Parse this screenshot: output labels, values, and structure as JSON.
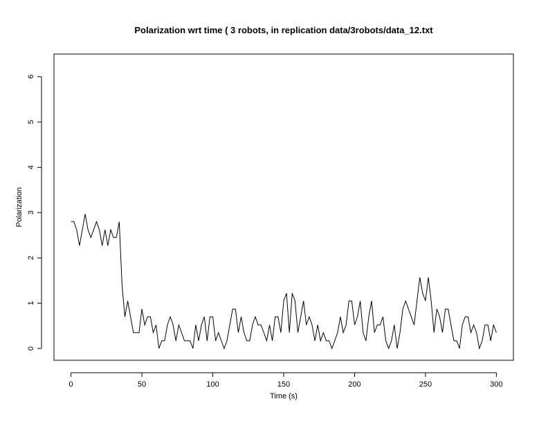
{
  "chart_data": {
    "type": "line",
    "title": "Polarization wrt time ( 3 robots, in replication  data/3robots/data_12.txt",
    "x_label": "Time (s)",
    "y_label": "Polarization",
    "color": "#000000",
    "xlim": [
      -12,
      312
    ],
    "ylim": [
      -0.26,
      6.5
    ],
    "xticks": [
      0,
      50,
      100,
      150,
      200,
      250,
      300
    ],
    "yticks": [
      0,
      1,
      2,
      3,
      4,
      5,
      6
    ],
    "x": [
      0,
      2,
      4,
      6,
      8,
      10,
      12,
      14,
      16,
      18,
      20,
      22,
      24,
      26,
      28,
      30,
      32,
      34,
      36,
      38,
      40,
      42,
      44,
      46,
      48,
      50,
      52,
      54,
      56,
      58,
      60,
      62,
      64,
      66,
      68,
      70,
      72,
      74,
      76,
      78,
      80,
      82,
      84,
      86,
      88,
      90,
      92,
      94,
      96,
      98,
      100,
      102,
      104,
      106,
      108,
      110,
      112,
      114,
      116,
      118,
      120,
      122,
      124,
      126,
      128,
      130,
      132,
      134,
      136,
      138,
      140,
      142,
      144,
      146,
      148,
      150,
      152,
      154,
      156,
      158,
      160,
      162,
      164,
      166,
      168,
      170,
      172,
      174,
      176,
      178,
      180,
      182,
      184,
      186,
      188,
      190,
      192,
      194,
      196,
      198,
      200,
      202,
      204,
      206,
      208,
      210,
      212,
      214,
      216,
      218,
      220,
      222,
      224,
      226,
      228,
      230,
      232,
      234,
      236,
      238,
      240,
      242,
      244,
      246,
      248,
      250,
      252,
      254,
      256,
      258,
      260,
      262,
      264,
      266,
      268,
      270,
      272,
      274,
      276,
      278,
      280,
      282,
      284,
      286,
      288,
      290,
      292,
      294,
      296,
      298,
      300
    ],
    "values": [
      2.8,
      2.8,
      2.62,
      2.27,
      2.62,
      2.97,
      2.62,
      2.45,
      2.62,
      2.8,
      2.62,
      2.27,
      2.62,
      2.27,
      2.62,
      2.45,
      2.45,
      2.8,
      1.4,
      0.7,
      1.05,
      0.7,
      0.35,
      0.35,
      0.35,
      0.87,
      0.52,
      0.7,
      0.7,
      0.35,
      0.52,
      0,
      0.17,
      0.17,
      0.52,
      0.7,
      0.52,
      0.17,
      0.52,
      0.35,
      0.17,
      0.17,
      0.17,
      0,
      0.52,
      0.17,
      0.52,
      0.7,
      0.17,
      0.7,
      0.7,
      0.17,
      0.35,
      0.17,
      0,
      0.17,
      0.52,
      0.87,
      0.87,
      0.35,
      0.7,
      0.35,
      0.17,
      0.17,
      0.52,
      0.7,
      0.52,
      0.52,
      0.35,
      0.17,
      0.52,
      0.17,
      0.7,
      0.7,
      0.35,
      1.05,
      1.22,
      0.35,
      1.22,
      1.05,
      0.35,
      0.7,
      1.05,
      0.52,
      0.7,
      0.52,
      0.17,
      0.52,
      0.17,
      0.35,
      0.17,
      0.17,
      0,
      0.17,
      0.35,
      0.7,
      0.35,
      0.52,
      1.05,
      1.05,
      0.52,
      0.7,
      1.05,
      0.35,
      0.17,
      0.7,
      1.05,
      0.35,
      0.52,
      0.52,
      0.7,
      0.17,
      0,
      0.17,
      0.52,
      0,
      0.35,
      0.87,
      1.05,
      0.87,
      0.7,
      0.52,
      1.05,
      1.57,
      1.22,
      1.05,
      1.57,
      1.05,
      0.35,
      0.87,
      0.7,
      0.35,
      0.87,
      0.87,
      0.52,
      0.17,
      0.17,
      0,
      0.52,
      0.7,
      0.7,
      0.35,
      0.52,
      0.35,
      0,
      0.17,
      0.52,
      0.52,
      0.17,
      0.52,
      0.35
    ]
  }
}
